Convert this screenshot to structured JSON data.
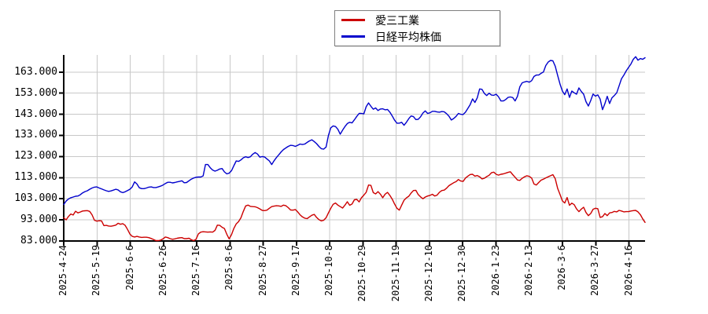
{
  "page": {
    "background": "#ffffff"
  },
  "chart_data": {
    "type": "line",
    "title": "",
    "grid": true,
    "legend": {
      "position": "top-center",
      "entries": [
        {
          "label": "愛三工業",
          "color": "#cc0000"
        },
        {
          "label": "日経平均株価",
          "color": "#0000cc"
        }
      ]
    },
    "x_axis": {
      "tick_labels": [
        "2025-4-24",
        "2025-5-19",
        "2025-6-6",
        "2025-6-26",
        "2025-7-16",
        "2025-8-6",
        "2025-8-27",
        "2025-9-17",
        "2025-10-8",
        "2025-10-29",
        "2025-11-19",
        "2025-12-10",
        "2025-12-30",
        "2026-1-23",
        "2026-2-13",
        "2026-3-6",
        "2026-3-27",
        "2026-4-16"
      ]
    },
    "y_axis": {
      "min": 83,
      "max": 171.1,
      "tick_values": [
        163,
        153,
        143,
        133,
        123,
        113,
        103,
        93,
        83
      ],
      "tick_labels": [
        "163.000",
        "153.000",
        "143.000",
        "133.000",
        "123.000",
        "113.000",
        "103.000",
        "93.000",
        "83.000"
      ]
    },
    "series": [
      {
        "name": "愛三工業",
        "color": "#cc0000",
        "values": [
          94.0,
          93.0,
          94.6,
          95.8,
          95.3,
          97.1,
          96.3,
          96.7,
          97.2,
          97.3,
          97.4,
          97.0,
          95.4,
          92.8,
          92.4,
          92.6,
          92.5,
          90.3,
          90.4,
          90.1,
          90.0,
          90.2,
          90.5,
          91.4,
          90.9,
          91.2,
          90.4,
          88.5,
          86.3,
          85.2,
          84.9,
          85.2,
          84.9,
          84.7,
          84.8,
          84.8,
          84.6,
          84.2,
          83.7,
          83.2,
          83.2,
          83.4,
          84.0,
          84.9,
          84.6,
          84.1,
          83.8,
          84.0,
          84.3,
          84.5,
          84.6,
          84.1,
          84.1,
          84.3,
          83.6,
          83.2,
          83.8,
          86.4,
          87.2,
          87.4,
          87.3,
          87.2,
          87.3,
          87.2,
          88.0,
          90.5,
          90.4,
          89.5,
          88.9,
          86.2,
          84.0,
          86.0,
          89.0,
          91.1,
          92.2,
          94.0,
          97.0,
          99.6,
          100.0,
          99.4,
          99.3,
          99.2,
          98.8,
          98.2,
          97.5,
          97.4,
          97.6,
          98.5,
          99.3,
          99.5,
          99.7,
          99.6,
          99.4,
          100.0,
          99.7,
          98.8,
          97.7,
          97.6,
          97.9,
          96.8,
          95.4,
          94.4,
          93.8,
          93.6,
          94.4,
          95.2,
          95.6,
          94.2,
          93.1,
          92.5,
          92.8,
          94.0,
          96.3,
          98.5,
          100.4,
          101.0,
          100.0,
          99.3,
          98.6,
          100.0,
          101.6,
          99.9,
          100.5,
          102.5,
          102.7,
          101.5,
          103.5,
          104.7,
          106.1,
          109.5,
          109.3,
          105.9,
          105.3,
          106.4,
          105.2,
          103.5,
          105.2,
          106.0,
          104.6,
          102.8,
          100.5,
          98.5,
          97.6,
          100.0,
          102.3,
          103.4,
          104.2,
          105.7,
          106.9,
          107.0,
          105.0,
          103.9,
          103.0,
          103.8,
          104.3,
          104.6,
          105.1,
          104.3,
          104.7,
          106.1,
          106.9,
          107.1,
          108.0,
          109.2,
          109.9,
          110.6,
          111.1,
          112.1,
          111.4,
          111.2,
          112.8,
          113.7,
          114.5,
          114.6,
          113.7,
          114.0,
          113.4,
          112.4,
          112.7,
          113.5,
          114.1,
          115.3,
          115.6,
          114.6,
          114.2,
          114.6,
          114.8,
          115.1,
          115.5,
          115.8,
          114.4,
          113.2,
          111.9,
          111.7,
          112.7,
          113.4,
          113.9,
          113.6,
          112.8,
          110.0,
          109.5,
          110.7,
          111.8,
          112.3,
          112.9,
          113.4,
          113.9,
          114.4,
          112.5,
          108.0,
          105.0,
          102.0,
          101.0,
          103.6,
          99.9,
          100.9,
          100.2,
          98.2,
          96.9,
          98.1,
          99.0,
          96.5,
          95.0,
          96.0,
          98.0,
          98.5,
          98.3,
          94.2,
          94.5,
          96.0,
          95.0,
          96.3,
          96.5,
          97.0,
          96.8,
          97.5,
          97.2,
          96.8,
          96.9,
          96.9,
          97.2,
          97.4,
          97.5,
          96.8,
          95.5,
          93.5,
          91.8
        ]
      },
      {
        "name": "日経平均株価",
        "color": "#0000cc",
        "values": [
          100.3,
          101.9,
          102.9,
          103.5,
          103.8,
          104.2,
          104.3,
          104.9,
          105.8,
          106.4,
          106.8,
          107.5,
          108.1,
          108.5,
          108.6,
          108.1,
          107.7,
          107.2,
          106.8,
          106.5,
          106.7,
          107.1,
          107.5,
          107.2,
          106.3,
          105.9,
          106.3,
          106.9,
          107.5,
          108.6,
          111.0,
          110.0,
          108.2,
          107.8,
          107.8,
          108.1,
          108.5,
          108.6,
          108.3,
          108.3,
          108.6,
          109.0,
          109.5,
          110.2,
          110.8,
          110.8,
          110.5,
          110.7,
          111.0,
          111.2,
          111.5,
          110.6,
          110.7,
          111.5,
          112.3,
          112.8,
          113.2,
          113.3,
          113.3,
          113.8,
          119.2,
          119.2,
          117.7,
          116.6,
          116.1,
          116.5,
          117.1,
          117.3,
          115.7,
          114.8,
          115.1,
          116.3,
          118.7,
          120.9,
          120.7,
          121.4,
          122.4,
          122.9,
          122.5,
          122.9,
          124.1,
          124.9,
          124.2,
          122.7,
          123.0,
          122.8,
          121.9,
          120.9,
          119.2,
          121.0,
          122.5,
          123.8,
          125.2,
          126.3,
          127.1,
          127.8,
          128.3,
          128.2,
          127.8,
          128.3,
          128.9,
          128.7,
          128.9,
          129.7,
          130.4,
          130.9,
          130.1,
          129.1,
          127.8,
          126.7,
          126.5,
          127.5,
          133.0,
          136.6,
          137.5,
          137.2,
          135.9,
          133.6,
          135.5,
          137.2,
          138.6,
          139.2,
          138.9,
          140.4,
          142.0,
          143.4,
          143.4,
          143.2,
          146.6,
          148.4,
          146.8,
          145.4,
          146.0,
          144.8,
          145.5,
          145.6,
          145.1,
          145.3,
          144.0,
          142.2,
          140.2,
          138.8,
          138.8,
          139.2,
          137.8,
          139.2,
          140.9,
          142.2,
          141.9,
          140.5,
          140.6,
          141.8,
          143.6,
          144.6,
          143.4,
          143.7,
          144.4,
          144.4,
          144.1,
          144.0,
          144.3,
          144.2,
          143.3,
          142.1,
          140.3,
          141.0,
          142.0,
          143.4,
          143.0,
          142.9,
          144.0,
          145.8,
          147.6,
          150.3,
          148.6,
          150.8,
          155.0,
          154.8,
          152.9,
          151.9,
          153.0,
          152.1,
          152.0,
          152.5,
          151.3,
          149.3,
          149.3,
          150.0,
          151.0,
          151.2,
          150.9,
          149.3,
          151.5,
          156.0,
          157.9,
          158.3,
          158.6,
          158.2,
          158.9,
          160.9,
          161.6,
          161.6,
          162.4,
          163.0,
          166.1,
          167.7,
          168.5,
          168.3,
          165.8,
          161.5,
          157.3,
          154.0,
          152.3,
          155.0,
          151.0,
          154.0,
          153.2,
          152.5,
          155.5,
          153.8,
          152.5,
          149.0,
          146.9,
          149.5,
          152.6,
          151.6,
          152.2,
          150.2,
          145.2,
          148.0,
          151.5,
          148.1,
          150.8,
          151.9,
          153.2,
          156.5,
          159.8,
          161.5,
          163.5,
          165.2,
          166.8,
          169.0,
          170.3,
          168.6,
          169.4,
          169.0,
          169.8
        ]
      }
    ]
  }
}
